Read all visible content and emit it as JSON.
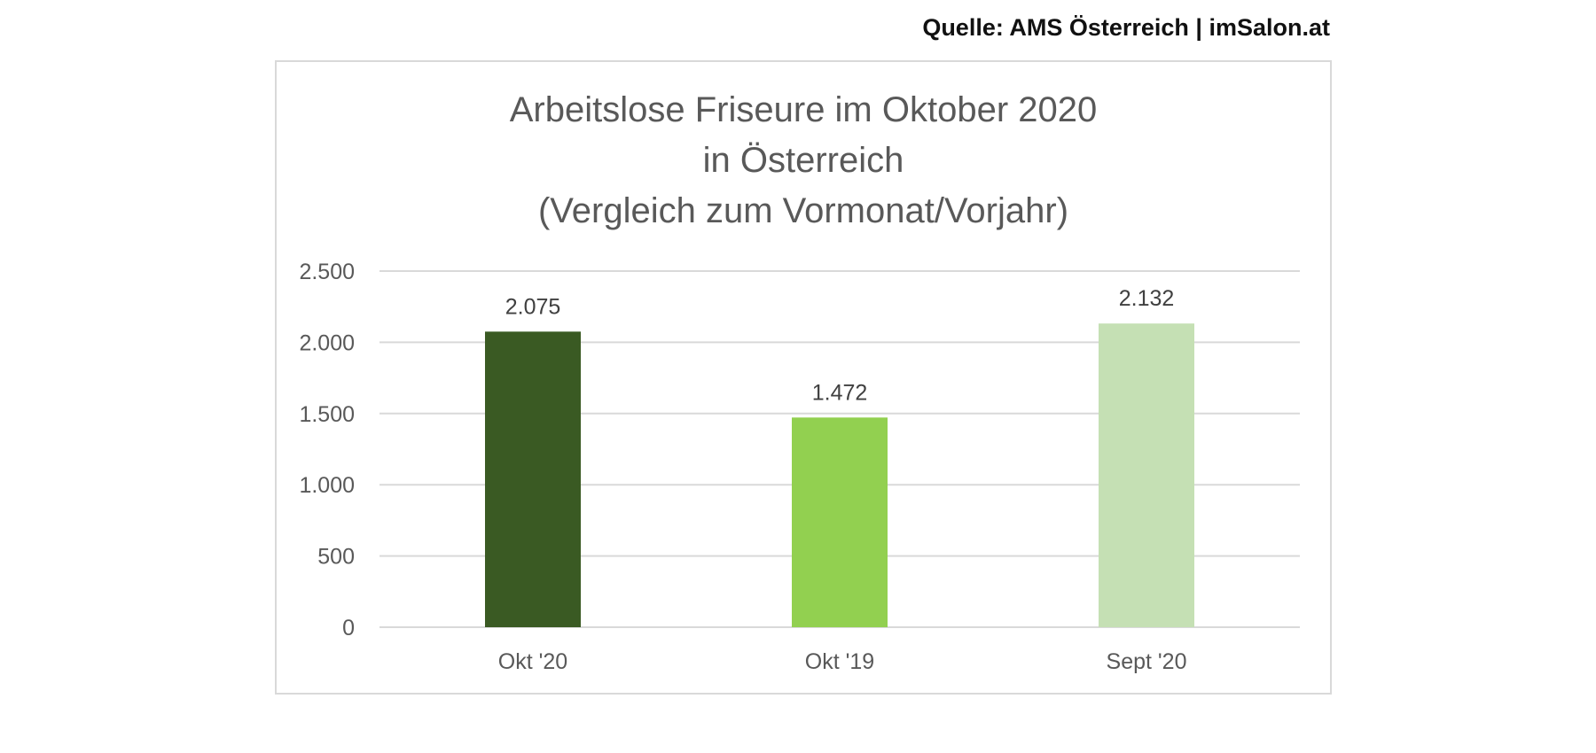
{
  "source": "Quelle: AMS Österreich | imSalon.at",
  "chart_data": {
    "type": "bar",
    "title_lines": [
      "Arbeitslose Friseure im Oktober 2020",
      "in Österreich",
      "(Vergleich zum Vormonat/Vorjahr)"
    ],
    "categories": [
      "Okt '20",
      "Okt '19",
      "Sept '20"
    ],
    "values": [
      2075,
      1472,
      2132
    ],
    "value_labels": [
      "2.075",
      "1.472",
      "2.132"
    ],
    "bar_colors": [
      "#3a5a23",
      "#92d050",
      "#c5e0b4"
    ],
    "yticks": [
      0,
      500,
      1000,
      1500,
      2000,
      2500
    ],
    "ytick_labels": [
      "0",
      "500",
      "1.000",
      "1.500",
      "2.000",
      "2.500"
    ],
    "ylim": [
      0,
      2500
    ],
    "grid": true,
    "xlabel": "",
    "ylabel": ""
  }
}
